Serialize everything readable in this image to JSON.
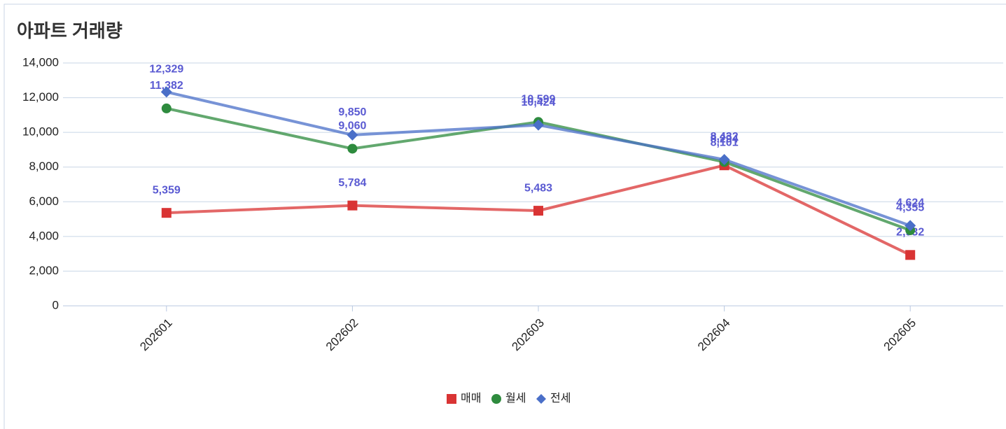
{
  "chart_data": {
    "type": "line",
    "title": "아파트 거래량",
    "categories": [
      "202601",
      "202602",
      "202603",
      "202604",
      "202605"
    ],
    "series": [
      {
        "name": "매매",
        "color": "#d93434",
        "marker": "square",
        "values": [
          5359,
          5784,
          5483,
          8101,
          2932
        ],
        "value_labels": [
          "5,359",
          "5,784",
          "5,483",
          "8,101",
          "2,932"
        ]
      },
      {
        "name": "월세",
        "color": "#2e8b3e",
        "marker": "circle",
        "values": [
          11382,
          9060,
          10599,
          8294,
          4355
        ],
        "value_labels": [
          "11,382",
          "9,060",
          "10,599",
          "8,294",
          "4,355"
        ]
      },
      {
        "name": "전세",
        "color": "#4a6fc8",
        "marker": "diamond",
        "values": [
          12329,
          9850,
          10424,
          8432,
          4624
        ],
        "value_labels": [
          "12,329",
          "9,850",
          "10,424",
          "8,432",
          "4,624"
        ]
      }
    ],
    "ylim": [
      0,
      14000
    ],
    "yticks": [
      0,
      {
        "value": 2000,
        "label": "2,000"
      },
      {
        "value": 4000,
        "label": "4,000"
      },
      {
        "value": 6000,
        "label": "6,000"
      },
      {
        "value": 8000,
        "label": "8,000"
      },
      {
        "value": 10000,
        "label": "10,000"
      },
      {
        "value": 12000,
        "label": "12,000"
      },
      {
        "value": 14000,
        "label": "14,000"
      }
    ],
    "grid": true,
    "legend": "bottom"
  }
}
